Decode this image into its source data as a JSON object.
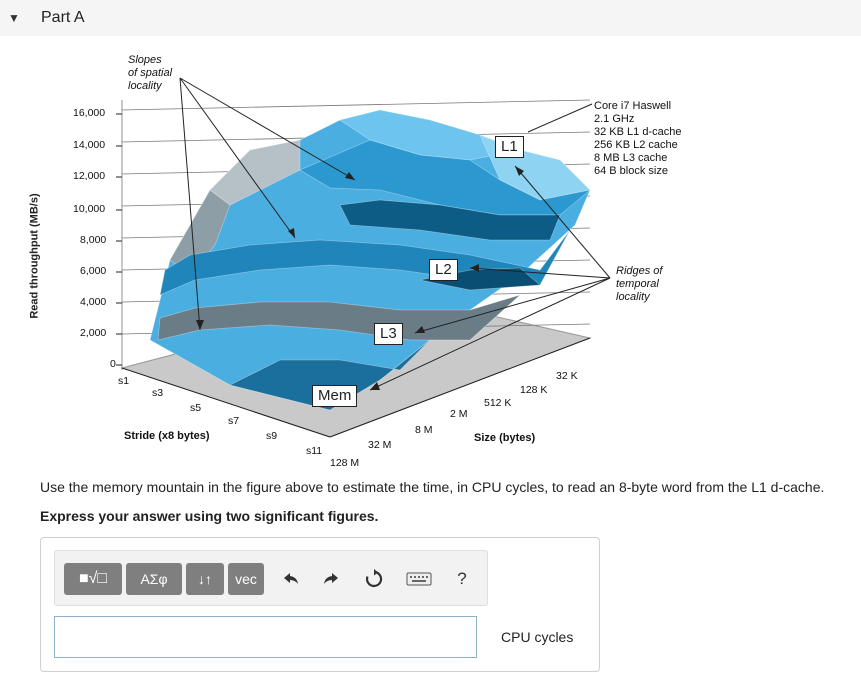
{
  "header": {
    "title": "Part A"
  },
  "figure": {
    "ylabel": "Read throughput (MB/s)",
    "yticks": [
      "16,000",
      "14,000",
      "12,000",
      "10,000",
      "8,000",
      "6,000",
      "4,000",
      "2,000",
      "0"
    ],
    "stride_ticks": [
      "s1",
      "s3",
      "s5",
      "s7",
      "s9",
      "s11"
    ],
    "stride_label": "Stride (x8 bytes)",
    "size_ticks": [
      "128 M",
      "32 M",
      "8 M",
      "2 M",
      "512 K",
      "128 K",
      "32 K"
    ],
    "size_label": "Size (bytes)",
    "slopes_annotation": [
      "Slopes",
      "of spatial",
      "locality"
    ],
    "ridges_annotation": [
      "Ridges of",
      "temporal",
      "locality"
    ],
    "specs": [
      "Core i7 Haswell",
      "2.1 GHz",
      "32 KB L1 d-cache",
      "256 KB L2 cache",
      "8 MB L3 cache",
      "64 B block size"
    ],
    "cache_labels": {
      "l1": "L1",
      "l2": "L2",
      "l3": "L3",
      "mem": "Mem"
    },
    "colors": {
      "surface_light": "#5ab8e6",
      "surface_dark": "#1f7fb0",
      "ridge_gray": "#6b7d86",
      "floor": "#c9c9c9"
    }
  },
  "question": {
    "text": "Use the memory mountain in the figure above to estimate the time, in CPU cycles, to read an 8-byte word from the L1 d-cache.",
    "instruction": "Express your answer using two significant figures."
  },
  "toolbar": {
    "templates_label": "■√□",
    "greek_label": "ΑΣφ",
    "arrows_label": "↓↑",
    "vec_label": "vec",
    "undo_icon": "undo-icon",
    "redo_icon": "redo-icon",
    "reset_icon": "reset-icon",
    "keyboard_icon": "keyboard-icon",
    "help_label": "?"
  },
  "answer": {
    "value": "",
    "unit": "CPU cycles"
  }
}
